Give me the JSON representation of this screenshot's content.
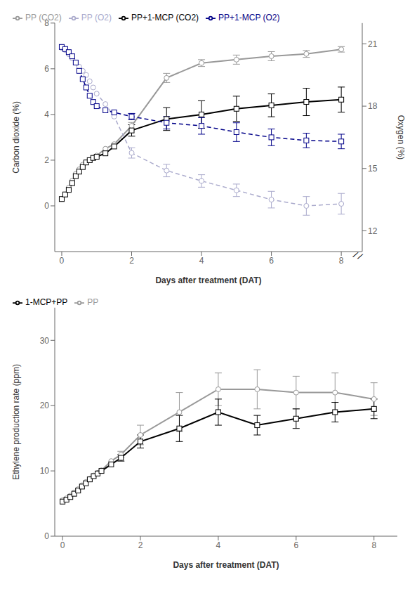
{
  "chart_data": [
    {
      "type": "line",
      "xlabel": "Days after treatment (DAT)",
      "ylabel": "Carbon dioxide (%)",
      "y2label": "Oxygen (%)",
      "x": [
        0.0,
        0.1,
        0.2,
        0.3,
        0.4,
        0.5,
        0.6,
        0.7,
        0.8,
        0.9,
        1.0,
        1.25,
        1.5,
        2.0,
        3.0,
        4.0,
        5.0,
        6.0,
        7.0,
        8.0
      ],
      "xlim": [
        -0.2,
        8.6
      ],
      "xticks": [
        0,
        2,
        4,
        6,
        8
      ],
      "ylim": [
        -2,
        8
      ],
      "yticks": [
        0,
        2,
        4,
        6,
        8
      ],
      "y2lim": [
        11.0,
        22.0
      ],
      "y2ticks": [
        12,
        15,
        18,
        21
      ],
      "grid": false,
      "legend": "upper left",
      "annotations": [
        "//"
      ],
      "series": [
        {
          "name": "PP (CO2)",
          "color": "#999999",
          "marker": "circle",
          "line_style": "solid",
          "axis": "y",
          "values": [
            0.3,
            0.5,
            0.8,
            1.1,
            1.4,
            1.6,
            1.8,
            1.9,
            2.0,
            2.1,
            2.2,
            2.5,
            2.7,
            3.5,
            5.6,
            6.25,
            6.4,
            6.55,
            6.65,
            6.85
          ],
          "errors": [
            0.0,
            0.0,
            0.0,
            0.0,
            0.0,
            0.0,
            0.0,
            0.0,
            0.0,
            0.0,
            0.0,
            0.0,
            0.0,
            0.15,
            0.2,
            0.15,
            0.2,
            0.2,
            0.15,
            0.12
          ]
        },
        {
          "name": "PP+1-MCP (CO2)",
          "color": "#000000",
          "marker": "square",
          "line_style": "solid",
          "axis": "y",
          "values": [
            0.3,
            0.5,
            0.7,
            1.0,
            1.3,
            1.5,
            1.7,
            1.9,
            2.0,
            2.1,
            2.15,
            2.3,
            2.6,
            3.3,
            3.8,
            4.0,
            4.25,
            4.4,
            4.55,
            4.65
          ],
          "errors": [
            0.0,
            0.0,
            0.0,
            0.0,
            0.0,
            0.0,
            0.0,
            0.0,
            0.0,
            0.0,
            0.0,
            0.0,
            0.0,
            0.25,
            0.5,
            0.6,
            0.55,
            0.5,
            0.6,
            0.55
          ]
        },
        {
          "name": "PP (O2)",
          "color": "#aaaacc",
          "marker": "circle",
          "line_style": "dashed",
          "axis": "y2",
          "values": [
            20.8,
            20.7,
            20.5,
            20.3,
            20.1,
            19.9,
            19.7,
            19.5,
            19.2,
            18.9,
            18.6,
            18.1,
            17.5,
            15.75,
            14.9,
            14.4,
            13.95,
            13.5,
            13.2,
            13.3
          ],
          "errors": [
            0.0,
            0.0,
            0.0,
            0.0,
            0.0,
            0.0,
            0.0,
            0.0,
            0.0,
            0.0,
            0.0,
            0.0,
            0.0,
            0.25,
            0.3,
            0.3,
            0.3,
            0.4,
            0.45,
            0.5
          ]
        },
        {
          "name": "PP+1-MCP (O2)",
          "color": "#000088",
          "marker": "square",
          "line_style": "dashed",
          "axis": "y2",
          "values": [
            20.85,
            20.75,
            20.6,
            20.4,
            20.1,
            19.7,
            19.3,
            18.9,
            18.5,
            18.2,
            18.0,
            17.8,
            17.7,
            17.5,
            17.2,
            17.05,
            16.75,
            16.5,
            16.35,
            16.3
          ],
          "errors": [
            0.0,
            0.0,
            0.0,
            0.0,
            0.0,
            0.0,
            0.0,
            0.0,
            0.0,
            0.0,
            0.0,
            0.0,
            0.0,
            0.15,
            0.3,
            0.4,
            0.45,
            0.4,
            0.35,
            0.35
          ]
        }
      ]
    },
    {
      "type": "line",
      "xlabel": "Days after treatment (DAT)",
      "ylabel": "Ethylene production rate (ppm)",
      "x": [
        0.0,
        0.1,
        0.2,
        0.3,
        0.4,
        0.5,
        0.6,
        0.7,
        0.8,
        0.9,
        1.0,
        1.25,
        1.5,
        2.0,
        3.0,
        4.0,
        5.0,
        6.0,
        7.0,
        8.0
      ],
      "xlim": [
        -0.2,
        8.6
      ],
      "xticks": [
        0,
        2,
        4,
        6,
        8
      ],
      "ylim": [
        0,
        35
      ],
      "yticks": [
        0,
        10,
        20,
        30
      ],
      "grid": false,
      "legend": "upper left",
      "series": [
        {
          "name": "PP",
          "color": "#999999",
          "marker": "circle",
          "line_style": "solid",
          "values": [
            5.5,
            5.8,
            6.2,
            6.7,
            7.2,
            7.8,
            8.3,
            8.8,
            9.3,
            9.7,
            10.1,
            11.5,
            12.5,
            15.5,
            19.0,
            22.5,
            22.5,
            22.0,
            22.0,
            21.0
          ],
          "errors": [
            0.0,
            0.0,
            0.0,
            0.0,
            0.0,
            0.0,
            0.0,
            0.0,
            0.0,
            0.0,
            0.0,
            0.0,
            0.5,
            1.5,
            3.0,
            2.5,
            3.0,
            2.5,
            3.0,
            2.5
          ]
        },
        {
          "name": "1-MCP+PP",
          "color": "#000000",
          "marker": "square",
          "line_style": "solid",
          "values": [
            5.3,
            5.6,
            6.0,
            6.5,
            7.0,
            7.6,
            8.1,
            8.7,
            9.2,
            9.6,
            10.0,
            11.0,
            12.0,
            14.5,
            16.5,
            19.0,
            17.0,
            18.0,
            19.0,
            19.5
          ],
          "errors": [
            0.0,
            0.0,
            0.0,
            0.0,
            0.0,
            0.0,
            0.0,
            0.0,
            0.0,
            0.0,
            0.0,
            0.0,
            0.5,
            1.0,
            2.0,
            2.0,
            1.5,
            1.5,
            1.5,
            1.5
          ]
        }
      ]
    }
  ]
}
